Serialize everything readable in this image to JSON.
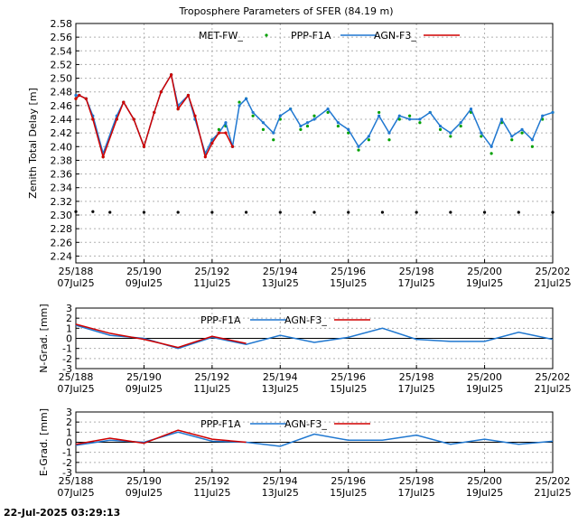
{
  "footer": {
    "timestamp": "22-Jul-2025 03:29:13"
  },
  "colors": {
    "met": "#00a000",
    "ppp": "#1f77d0",
    "agn": "#d00000",
    "grid": "#b0b0b0"
  },
  "x_ticks": [
    {
      "day": "25/188",
      "date": "07Jul25"
    },
    {
      "day": "25/190",
      "date": "09Jul25"
    },
    {
      "day": "25/192",
      "date": "11Jul25"
    },
    {
      "day": "25/194",
      "date": "13Jul25"
    },
    {
      "day": "25/196",
      "date": "15Jul25"
    },
    {
      "day": "25/198",
      "date": "17Jul25"
    },
    {
      "day": "25/200",
      "date": "19Jul25"
    },
    {
      "day": "25/202",
      "date": "21Jul25"
    }
  ],
  "chart_data": [
    {
      "type": "line",
      "title": "Troposphere Parameters of SFER (84.19 m)",
      "ylabel": "Zenith Total Delay [m]",
      "xlabel": "",
      "xlim": [
        188,
        202
      ],
      "ylim": [
        2.23,
        2.58
      ],
      "yticks": [
        2.24,
        2.26,
        2.28,
        2.3,
        2.32,
        2.34,
        2.36,
        2.38,
        2.4,
        2.42,
        2.44,
        2.46,
        2.48,
        2.5,
        2.52,
        2.54,
        2.56,
        2.58
      ],
      "grid": true,
      "legend_placement": "top-center",
      "series": [
        {
          "name": "MET-FW_",
          "style": "points",
          "x": [
            188.0,
            188.1,
            188.3,
            188.5,
            188.8,
            189.2,
            189.4,
            189.7,
            190.0,
            190.3,
            190.5,
            190.8,
            191.0,
            191.3,
            191.5,
            191.8,
            192.0,
            192.2,
            192.4,
            192.6,
            192.8,
            193.0,
            193.2,
            193.5,
            193.8,
            194.0,
            194.3,
            194.6,
            194.8,
            195.0,
            195.4,
            195.7,
            196.0,
            196.3,
            196.6,
            196.9,
            197.2,
            197.5,
            197.8,
            198.1,
            198.4,
            198.7,
            199.0,
            199.3,
            199.6,
            199.9,
            200.2,
            200.5,
            200.8,
            201.1,
            201.4,
            201.7,
            202.0
          ],
          "y": [
            2.47,
            2.475,
            2.47,
            2.44,
            2.385,
            2.44,
            2.465,
            2.44,
            2.4,
            2.45,
            2.48,
            2.505,
            2.455,
            2.475,
            2.44,
            2.39,
            2.41,
            2.425,
            2.43,
            2.4,
            2.465,
            2.47,
            2.445,
            2.425,
            2.41,
            2.44,
            2.455,
            2.425,
            2.43,
            2.445,
            2.45,
            2.43,
            2.42,
            2.395,
            2.41,
            2.45,
            2.41,
            2.44,
            2.445,
            2.435,
            2.45,
            2.425,
            2.415,
            2.43,
            2.45,
            2.415,
            2.39,
            2.435,
            2.41,
            2.42,
            2.4,
            2.44,
            2.45
          ]
        },
        {
          "name": "PPP-F1A",
          "style": "line-points",
          "x": [
            188.0,
            188.1,
            188.3,
            188.5,
            188.8,
            189.2,
            189.4,
            189.7,
            190.0,
            190.3,
            190.5,
            190.8,
            191.0,
            191.3,
            191.5,
            191.8,
            192.0,
            192.2,
            192.4,
            192.6,
            192.8,
            193.0,
            193.2,
            193.5,
            193.8,
            194.0,
            194.3,
            194.6,
            194.8,
            195.0,
            195.4,
            195.7,
            196.0,
            196.3,
            196.6,
            196.9,
            197.2,
            197.5,
            197.8,
            198.1,
            198.4,
            198.7,
            199.0,
            199.3,
            199.6,
            199.9,
            200.2,
            200.5,
            200.8,
            201.1,
            201.4,
            201.7,
            202.0
          ],
          "y": [
            2.475,
            2.475,
            2.47,
            2.445,
            2.39,
            2.445,
            2.465,
            2.44,
            2.4,
            2.45,
            2.48,
            2.505,
            2.46,
            2.475,
            2.44,
            2.39,
            2.41,
            2.42,
            2.435,
            2.4,
            2.46,
            2.47,
            2.45,
            2.435,
            2.42,
            2.445,
            2.455,
            2.43,
            2.435,
            2.44,
            2.455,
            2.435,
            2.425,
            2.4,
            2.415,
            2.445,
            2.42,
            2.445,
            2.44,
            2.44,
            2.45,
            2.43,
            2.42,
            2.435,
            2.455,
            2.42,
            2.4,
            2.44,
            2.415,
            2.425,
            2.41,
            2.445,
            2.45
          ]
        },
        {
          "name": "AGN-F3_",
          "style": "line-points",
          "x": [
            188.0,
            188.1,
            188.3,
            188.5,
            188.8,
            189.2,
            189.4,
            189.7,
            190.0,
            190.3,
            190.5,
            190.8,
            191.0,
            191.3,
            191.5,
            191.8,
            192.0,
            192.2,
            192.4,
            192.6
          ],
          "y": [
            2.47,
            2.475,
            2.47,
            2.44,
            2.385,
            2.44,
            2.465,
            2.44,
            2.4,
            2.45,
            2.48,
            2.505,
            2.455,
            2.475,
            2.445,
            2.385,
            2.405,
            2.42,
            2.42,
            2.4
          ]
        },
        {
          "name": "",
          "style": "points",
          "x": [
            188.0,
            188.5,
            189.0,
            190.0,
            191.0,
            192.0,
            193.0,
            194.0,
            195.0,
            196.0,
            197.0,
            198.0,
            199.0,
            200.0,
            201.0,
            202.0
          ],
          "y": [
            2.305,
            2.305,
            2.304,
            2.304,
            2.304,
            2.304,
            2.304,
            2.304,
            2.304,
            2.304,
            2.304,
            2.304,
            2.304,
            2.304,
            2.304,
            2.304
          ]
        }
      ]
    },
    {
      "type": "line",
      "title": "",
      "ylabel": "N-Grad. [mm]",
      "xlabel": "",
      "xlim": [
        188,
        202
      ],
      "ylim": [
        -3,
        3
      ],
      "yticks": [
        -3,
        -2,
        -1,
        0,
        1,
        2,
        3
      ],
      "grid": true,
      "legend_placement": "top-center",
      "series": [
        {
          "name": "PPP-F1A",
          "x": [
            188,
            189,
            190,
            191,
            192,
            193,
            194,
            195,
            196,
            197,
            198,
            199,
            200,
            201,
            202
          ],
          "y": [
            1.3,
            0.3,
            0.0,
            -1.0,
            0.1,
            -0.6,
            0.3,
            -0.4,
            0.1,
            1.0,
            -0.1,
            -0.3,
            -0.3,
            0.6,
            -0.1
          ]
        },
        {
          "name": "AGN-F3_",
          "x": [
            188,
            189,
            190,
            191,
            192,
            193
          ],
          "y": [
            1.4,
            0.5,
            -0.1,
            -0.9,
            0.2,
            -0.5
          ]
        }
      ]
    },
    {
      "type": "line",
      "title": "",
      "ylabel": "E-Grad. [mm]",
      "xlabel": "",
      "xlim": [
        188,
        202
      ],
      "ylim": [
        -3,
        3
      ],
      "yticks": [
        -3,
        -2,
        -1,
        0,
        1,
        2,
        3
      ],
      "grid": true,
      "legend_placement": "top-center",
      "series": [
        {
          "name": "PPP-F1A",
          "x": [
            188,
            189,
            190,
            191,
            192,
            193,
            194,
            195,
            196,
            197,
            198,
            199,
            200,
            201,
            202
          ],
          "y": [
            -0.3,
            0.2,
            0.0,
            1.0,
            0.1,
            0.0,
            -0.4,
            0.8,
            0.2,
            0.2,
            0.7,
            -0.2,
            0.3,
            -0.2,
            0.1
          ]
        },
        {
          "name": "AGN-F3_",
          "x": [
            188,
            189,
            190,
            191,
            192,
            193
          ],
          "y": [
            -0.2,
            0.4,
            -0.1,
            1.2,
            0.3,
            0.0
          ]
        }
      ]
    }
  ]
}
